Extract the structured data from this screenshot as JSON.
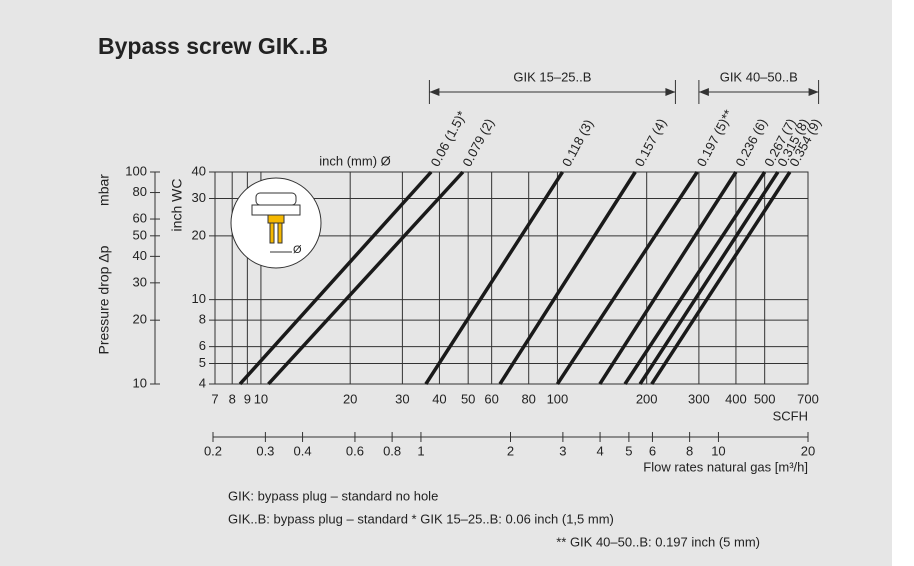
{
  "chart_data": {
    "type": "line",
    "title": "Bypass screw GIK..B",
    "xscale": "log",
    "yscale": "log",
    "xlabel": "SCFH",
    "x2label": "Flow rates natural gas [m³/h]",
    "ylabel": "inch WC",
    "y2label": "Pressure drop Δp",
    "y2unit": "mbar",
    "diameter_label": "inch (mm) Ø",
    "inset_label": "Ø",
    "xlim": [
      7,
      700
    ],
    "xticks": [
      7,
      8,
      {
        "value": 9,
        "label": "9"
      },
      10,
      20,
      30,
      40,
      50,
      60,
      80,
      100,
      200,
      300,
      400,
      500,
      700
    ],
    "x2lim": [
      0.2,
      20
    ],
    "x2ticks": [
      0.2,
      0.3,
      0.4,
      0.6,
      0.8,
      1,
      2,
      3,
      4,
      5,
      6,
      8,
      10,
      20
    ],
    "ylim": [
      4,
      40
    ],
    "yticks": [
      4,
      5,
      6,
      8,
      10,
      20,
      30,
      40
    ],
    "y2lim": [
      10,
      100
    ],
    "y2ticks": [
      10,
      20,
      30,
      40,
      50,
      60,
      80,
      100
    ],
    "grid": true,
    "ranges": [
      {
        "label": "GIK 15–25..B",
        "from": 37,
        "to": 250
      },
      {
        "label": "GIK 40–50..B",
        "from": 300,
        "to": 760
      }
    ],
    "series": [
      {
        "name": "0.06 (1.5)*",
        "color": "#1a1a1a",
        "x": [
          8.5,
          37.5
        ],
        "values": [
          4,
          40
        ]
      },
      {
        "name": "0.079 (2)",
        "color": "#1a1a1a",
        "x": [
          10.6,
          48
        ],
        "values": [
          4,
          40
        ]
      },
      {
        "name": "0.118 (3)",
        "color": "#1a1a1a",
        "x": [
          36,
          104
        ],
        "values": [
          4,
          40
        ]
      },
      {
        "name": "0.157 (4)",
        "color": "#1a1a1a",
        "x": [
          64,
          183
        ],
        "values": [
          4,
          40
        ]
      },
      {
        "name": "0.197 (5)**",
        "color": "#1a1a1a",
        "x": [
          100,
          296
        ],
        "values": [
          4,
          40
        ]
      },
      {
        "name": "0.236 (6)",
        "color": "#1a1a1a",
        "x": [
          139,
          400
        ],
        "values": [
          4,
          40
        ]
      },
      {
        "name": "0.267 (7)",
        "color": "#1a1a1a",
        "x": [
          169,
          500
        ],
        "values": [
          4,
          40
        ]
      },
      {
        "name": "0.315 (8)",
        "color": "#1a1a1a",
        "x": [
          190,
          554
        ],
        "values": [
          4,
          40
        ]
      },
      {
        "name": "0.354 (9)",
        "color": "#1a1a1a",
        "x": [
          208,
          608
        ],
        "values": [
          4,
          40
        ]
      }
    ],
    "notes": [
      "GIK: bypass plug – standard no hole",
      "GIK..B: bypass plug – standard * GIK 15–25..B: 0.06 inch (1,5 mm)",
      "** GIK 40–50..B: 0.197 inch (5 mm)"
    ]
  }
}
